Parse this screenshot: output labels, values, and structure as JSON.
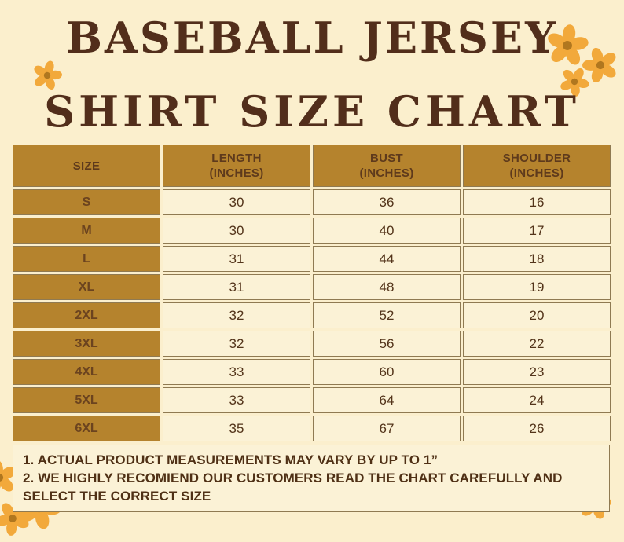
{
  "title": {
    "line1": "BASEBALL JERSEY",
    "line2": "SHIRT SIZE CHART"
  },
  "table": {
    "columns": [
      {
        "label": "SIZE",
        "sub": ""
      },
      {
        "label": "LENGTH",
        "sub": "(INCHES)"
      },
      {
        "label": "BUST",
        "sub": "(INCHES)"
      },
      {
        "label": "SHOULDER",
        "sub": "(INCHES)"
      }
    ],
    "rows": [
      {
        "size": "S",
        "length": "30",
        "bust": "36",
        "shoulder": "16"
      },
      {
        "size": "M",
        "length": "30",
        "bust": "40",
        "shoulder": "17"
      },
      {
        "size": "L",
        "length": "31",
        "bust": "44",
        "shoulder": "18"
      },
      {
        "size": "XL",
        "length": "31",
        "bust": "48",
        "shoulder": "19"
      },
      {
        "size": "2XL",
        "length": "32",
        "bust": "52",
        "shoulder": "20"
      },
      {
        "size": "3XL",
        "length": "32",
        "bust": "56",
        "shoulder": "22"
      },
      {
        "size": "4XL",
        "length": "33",
        "bust": "60",
        "shoulder": "23"
      },
      {
        "size": "5XL",
        "length": "33",
        "bust": "64",
        "shoulder": "24"
      },
      {
        "size": "6XL",
        "length": "35",
        "bust": "67",
        "shoulder": "26"
      }
    ]
  },
  "notes": [
    "1. ACTUAL PRODUCT MEASUREMENTS MAY VARY BY UP TO 1”",
    "2. WE HIGHLY RECOMIEND OUR CUSTOMERS READ THE CHART CAREFULLY AND SELECT THE CORRECT SIZE"
  ],
  "colors": {
    "page-bg": "#FBEFCD",
    "gold": "#B5832D",
    "cell-bg": "#FBF2D6",
    "border": "#8f7a52",
    "title-text": "#522E1B",
    "header-text": "#5E3A1C",
    "cell-text": "#53341A",
    "note-text": "#4F3015",
    "flower-petal": "#F2A93B",
    "flower-center": "#B0771F"
  }
}
